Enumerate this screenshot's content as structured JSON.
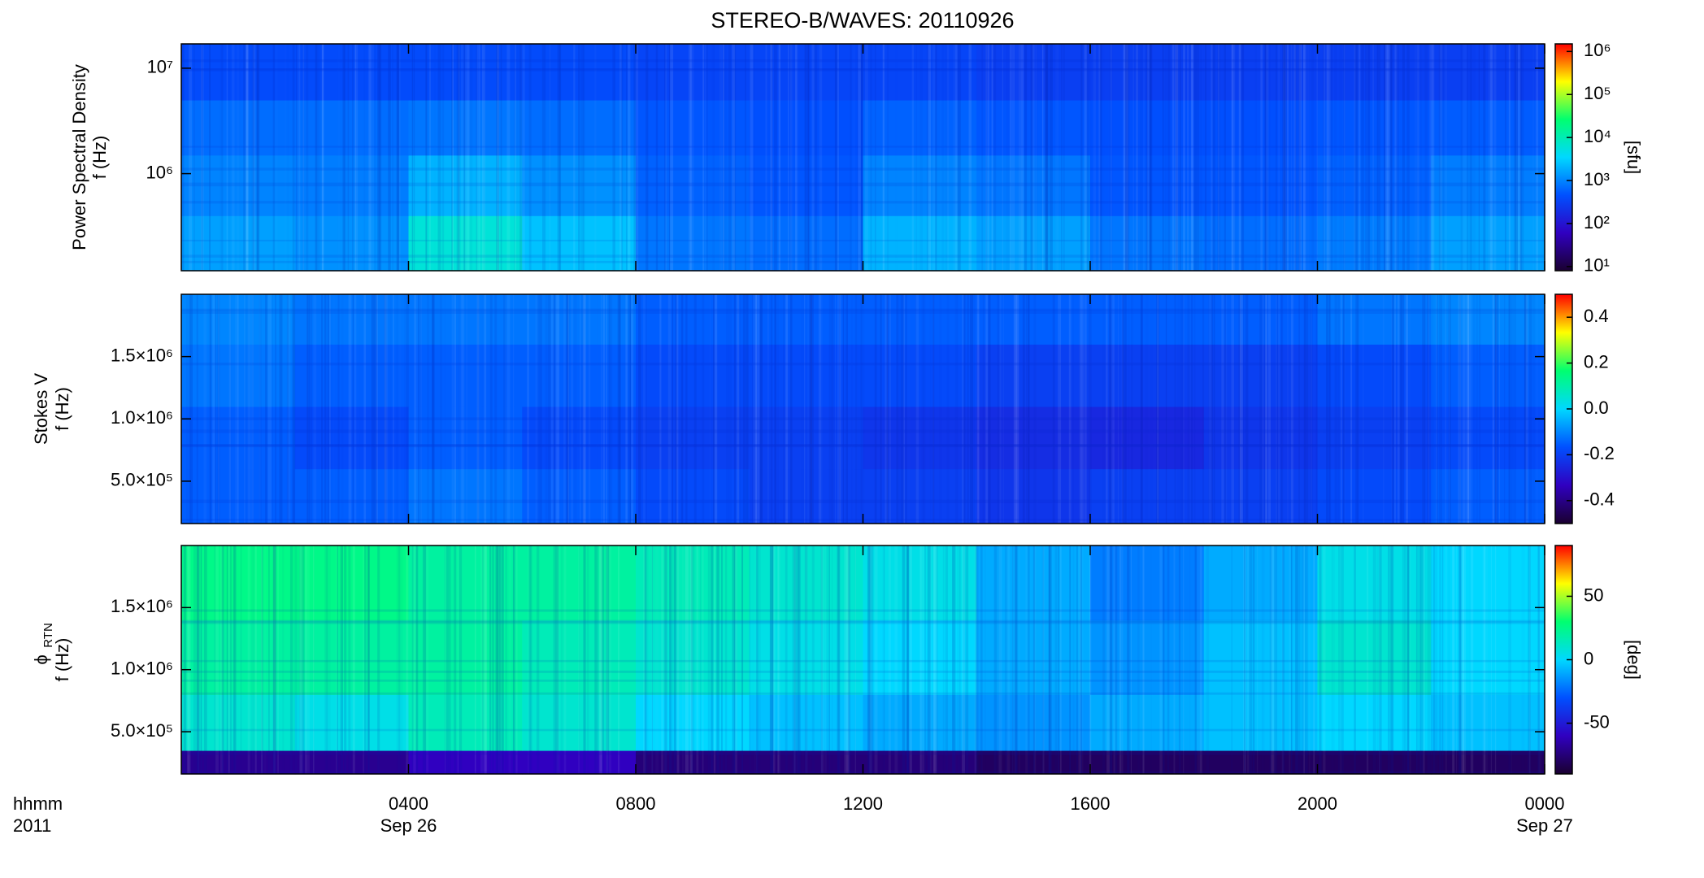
{
  "title": "STEREO-B/WAVES: 20110926",
  "chart_data": [
    {
      "type": "heatmap",
      "ylabel": [
        "Power Spectral Density",
        "f (Hz)"
      ],
      "ylog": true,
      "ylim": [
        120000,
        17000000
      ],
      "yticks": [
        {
          "value": 1000000,
          "label": "10⁶"
        },
        {
          "value": 10000000,
          "label": "10⁷"
        }
      ],
      "xlim": [
        0,
        24
      ],
      "x_bins": [
        0,
        2,
        4,
        6,
        8,
        10,
        12,
        14,
        16,
        18,
        20,
        22,
        24
      ],
      "y_bins": [
        120000,
        400000,
        1500000,
        5000000,
        17000000
      ],
      "z": [
        [
          1500,
          1200,
          6000,
          2500,
          800,
          700,
          2000,
          1500,
          800,
          700,
          900,
          1500
        ],
        [
          1000,
          900,
          2000,
          1200,
          600,
          500,
          1000,
          800,
          500,
          500,
          600,
          900
        ],
        [
          700,
          700,
          800,
          700,
          500,
          450,
          600,
          500,
          450,
          450,
          500,
          550
        ],
        [
          400,
          400,
          400,
          400,
          350,
          350,
          350,
          300,
          300,
          300,
          300,
          300
        ]
      ],
      "clog": true,
      "clim": [
        8,
        1500000
      ],
      "cticks": [
        {
          "value": 10,
          "label": "10¹"
        },
        {
          "value": 100,
          "label": "10²"
        },
        {
          "value": 1000,
          "label": "10³"
        },
        {
          "value": 10000,
          "label": "10⁴"
        },
        {
          "value": 100000,
          "label": "10⁵"
        },
        {
          "value": 1000000,
          "label": "10⁶"
        }
      ],
      "colorbar_label": "[sfu]",
      "colormap": [
        "#1a0030",
        "#3000c0",
        "#0050ff",
        "#00d8ff",
        "#00ff70",
        "#ffff00",
        "#ff0000"
      ]
    },
    {
      "type": "heatmap",
      "ylabel": [
        "Stokes V",
        "f (Hz)"
      ],
      "ylog": false,
      "ylim": [
        160000,
        2000000
      ],
      "yticks": [
        {
          "value": 500000,
          "label": "5.0×10⁵"
        },
        {
          "value": 1000000,
          "label": "1.0×10⁶"
        },
        {
          "value": 1500000,
          "label": "1.5×10⁶"
        }
      ],
      "xlim": [
        0,
        24
      ],
      "x_bins": [
        0,
        2,
        4,
        6,
        8,
        10,
        12,
        14,
        16,
        18,
        20,
        22,
        24
      ],
      "y_bins": [
        160000,
        600000,
        1100000,
        1600000,
        2000000
      ],
      "z": [
        [
          -0.15,
          -0.15,
          -0.12,
          -0.15,
          -0.18,
          -0.2,
          -0.2,
          -0.22,
          -0.2,
          -0.2,
          -0.18,
          -0.15
        ],
        [
          -0.15,
          -0.18,
          -0.15,
          -0.18,
          -0.2,
          -0.2,
          -0.22,
          -0.24,
          -0.25,
          -0.22,
          -0.2,
          -0.18
        ],
        [
          -0.12,
          -0.15,
          -0.15,
          -0.15,
          -0.18,
          -0.18,
          -0.18,
          -0.2,
          -0.2,
          -0.2,
          -0.18,
          -0.15
        ],
        [
          -0.1,
          -0.12,
          -0.12,
          -0.12,
          -0.15,
          -0.15,
          -0.15,
          -0.15,
          -0.15,
          -0.15,
          -0.12,
          -0.1
        ]
      ],
      "clog": false,
      "clim": [
        -0.5,
        0.5
      ],
      "cticks": [
        -0.4,
        -0.2,
        {
          "value": 0,
          "label": "0.0"
        },
        0.2,
        0.4
      ],
      "colormap": [
        "#1a0030",
        "#3000c0",
        "#0050ff",
        "#00d8ff",
        "#00ff70",
        "#ffff00",
        "#ff0000"
      ]
    },
    {
      "type": "heatmap",
      "ylabel": [
        "ϕ",
        "f (Hz)"
      ],
      "ylabel_sub": "RTN",
      "ylog": false,
      "ylim": [
        160000,
        2000000
      ],
      "yticks": [
        {
          "value": 500000,
          "label": "5.0×10⁵"
        },
        {
          "value": 1000000,
          "label": "1.0×10⁶"
        },
        {
          "value": 1500000,
          "label": "1.5×10⁶"
        }
      ],
      "xlim": [
        0,
        24
      ],
      "xticks": [
        {
          "value": 4,
          "label": "0400"
        },
        {
          "value": 8,
          "label": "0800"
        },
        {
          "value": 12,
          "label": "1200"
        },
        {
          "value": 16,
          "label": "1600"
        },
        {
          "value": 20,
          "label": "2000"
        },
        {
          "value": 24,
          "label": "0000"
        }
      ],
      "date_labels": [
        {
          "value": 4,
          "label": "Sep 26"
        },
        {
          "value": 24,
          "label": "Sep 27"
        }
      ],
      "xlabel": "hhmm",
      "year": "2011",
      "x_bins": [
        0,
        2,
        4,
        6,
        8,
        10,
        12,
        14,
        16,
        18,
        20,
        22,
        24
      ],
      "y_bins": [
        160000,
        350000,
        800000,
        1400000,
        2000000
      ],
      "z": [
        [
          -70,
          -70,
          -60,
          -60,
          -75,
          -75,
          -75,
          -80,
          -80,
          -80,
          -80,
          -80
        ],
        [
          10,
          5,
          15,
          10,
          0,
          -5,
          -10,
          -15,
          -10,
          -5,
          0,
          -5
        ],
        [
          20,
          20,
          20,
          15,
          10,
          5,
          0,
          -10,
          -15,
          -5,
          10,
          0
        ],
        [
          25,
          25,
          20,
          20,
          15,
          10,
          5,
          -10,
          -20,
          -10,
          5,
          0
        ]
      ],
      "clog": false,
      "clim": [
        -90,
        90
      ],
      "cticks": [
        -50,
        0,
        50
      ],
      "colorbar_label": "[deg]",
      "colormap": [
        "#1a0030",
        "#3000c0",
        "#0050ff",
        "#00d8ff",
        "#00ff70",
        "#ffff00",
        "#ff0000"
      ]
    }
  ]
}
